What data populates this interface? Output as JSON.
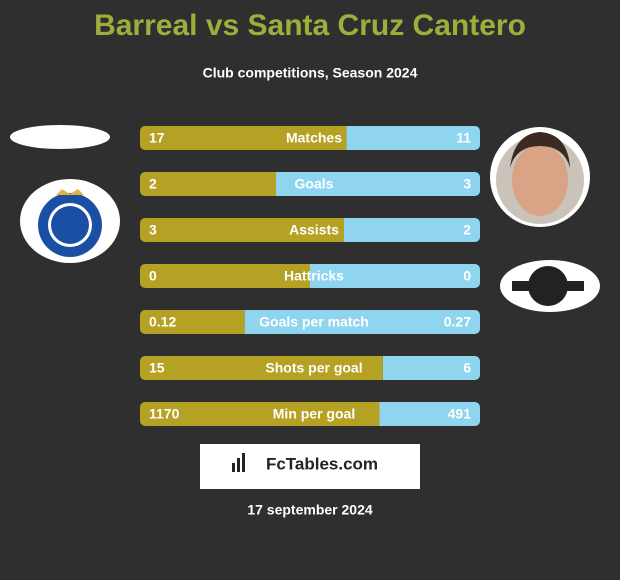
{
  "title": "Barreal vs Santa Cruz Cantero",
  "subtitle": "Club competitions, Season 2024",
  "rows": [
    {
      "label": "Matches",
      "left": 17,
      "right": 11
    },
    {
      "label": "Goals",
      "left": 2,
      "right": 3
    },
    {
      "label": "Assists",
      "left": 3,
      "right": 2
    },
    {
      "label": "Hattricks",
      "left": 0,
      "right": 0
    },
    {
      "label": "Goals per match",
      "left": 0.12,
      "right": 0.27
    },
    {
      "label": "Shots per goal",
      "left": 15,
      "right": 6
    },
    {
      "label": "Min per goal",
      "left": 1170,
      "right": 491
    }
  ],
  "brand": "FcTables.com",
  "date": "17 september 2024",
  "left_color": "#b5a124",
  "right_color": "#8fd5f0"
}
